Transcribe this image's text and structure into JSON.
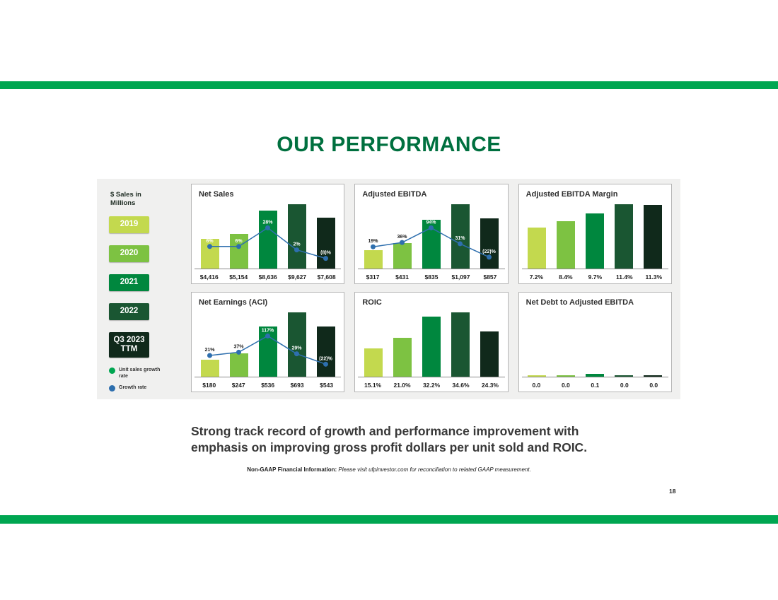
{
  "page": {
    "title": "OUR PERFORMANCE",
    "takeaway": "Strong track record of growth and performance improvement with\nemphasis on improving gross profit dollars per unit sold and ROIC.",
    "footnote_bold": "Non-GAAP Financial Information:",
    "footnote_italic": " Please visit ufpinvestor.com for reconciliation to related GAAP measurement.",
    "page_number": "18"
  },
  "colors": {
    "accent_green": "#00A651",
    "title_green": "#00703F",
    "line_blue": "#2E6FAE",
    "dashboard_bg": "#F0F0EF",
    "bars": [
      "#C3D94E",
      "#7DC242",
      "#00873E",
      "#1A5632",
      "#10291B"
    ]
  },
  "legend": {
    "heading": "$ Sales in\nMillions",
    "years": [
      {
        "label": "2019",
        "color": "#C3D94E"
      },
      {
        "label": "2020",
        "color": "#7DC242"
      },
      {
        "label": "2021",
        "color": "#00873E"
      },
      {
        "label": "2022",
        "color": "#1A5632"
      },
      {
        "label": "Q3 2023\nTTM",
        "color": "#10291B"
      }
    ],
    "series": [
      {
        "id": "unit-sales-growth-rate",
        "label": "Unit sales growth rate",
        "color": "#00A651"
      },
      {
        "id": "growth-rate",
        "label": "Growth rate",
        "color": "#2E6FAE"
      }
    ]
  },
  "chart_data": [
    {
      "id": "net-sales",
      "type": "bar+line",
      "title": "Net Sales",
      "categories": [
        "2019",
        "2020",
        "2021",
        "2022",
        "Q3 2023 TTM"
      ],
      "values": [
        4416,
        5154,
        8636,
        9627,
        7608
      ],
      "value_labels": [
        "$4,416",
        "$5,154",
        "$8,636",
        "$9,627",
        "$7,608"
      ],
      "ymax": 10130,
      "line": {
        "name": "Growth rate",
        "values": [
          6,
          6,
          28,
          2,
          -8
        ],
        "labels": [
          "6%",
          "6%",
          "28%",
          "2%",
          "(8)%"
        ]
      }
    },
    {
      "id": "adjusted-ebitda",
      "type": "bar+line",
      "title": "Adjusted EBITDA",
      "categories": [
        "2019",
        "2020",
        "2021",
        "2022",
        "Q3 2023 TTM"
      ],
      "values": [
        317,
        431,
        835,
        1097,
        857
      ],
      "value_labels": [
        "$317",
        "$431",
        "$835",
        "$1,097",
        "$857"
      ],
      "ymax": 1155,
      "line": {
        "name": "Growth rate",
        "values": [
          19,
          36,
          94,
          31,
          -22
        ],
        "labels": [
          "19%",
          "36%",
          "94%",
          "31%",
          "(22)%"
        ]
      }
    },
    {
      "id": "adjusted-ebitda-margin",
      "type": "bar",
      "title": "Adjusted EBITDA Margin",
      "categories": [
        "2019",
        "2020",
        "2021",
        "2022",
        "Q3 2023 TTM"
      ],
      "values": [
        7.2,
        8.4,
        9.7,
        11.4,
        11.3
      ],
      "value_labels": [
        "7.2%",
        "8.4%",
        "9.7%",
        "11.4%",
        "11.3%"
      ],
      "ymax": 12.0
    },
    {
      "id": "net-earnings-aci",
      "type": "bar+line",
      "title": "Net Earnings (ACI)",
      "categories": [
        "2019",
        "2020",
        "2021",
        "2022",
        "Q3 2023 TTM"
      ],
      "values": [
        180,
        247,
        536,
        693,
        543
      ],
      "value_labels": [
        "$180",
        "$247",
        "$536",
        "$693",
        "$543"
      ],
      "ymax": 729,
      "line": {
        "name": "Growth rate",
        "values": [
          21,
          37,
          117,
          29,
          -22
        ],
        "labels": [
          "21%",
          "37%",
          "117%",
          "29%",
          "(22)%"
        ]
      }
    },
    {
      "id": "roic",
      "type": "bar",
      "title": "ROIC",
      "categories": [
        "2019",
        "2020",
        "2021",
        "2022",
        "Q3 2023 TTM"
      ],
      "values": [
        15.1,
        21.0,
        32.2,
        34.6,
        24.3
      ],
      "value_labels": [
        "15.1%",
        "21.0%",
        "32.2%",
        "34.6%",
        "24.3%"
      ],
      "ymax": 36.4
    },
    {
      "id": "net-debt-to-adjusted-ebitda",
      "type": "bar",
      "title": "Net Debt to Adjusted EBITDA",
      "categories": [
        "2019",
        "2020",
        "2021",
        "2022",
        "Q3 2023 TTM"
      ],
      "values": [
        0.0,
        0.0,
        0.1,
        0.0,
        0.0
      ],
      "value_labels": [
        "0.0",
        "0.0",
        "0.1",
        "0.0",
        "0.0"
      ],
      "ymax": 2.5
    }
  ]
}
